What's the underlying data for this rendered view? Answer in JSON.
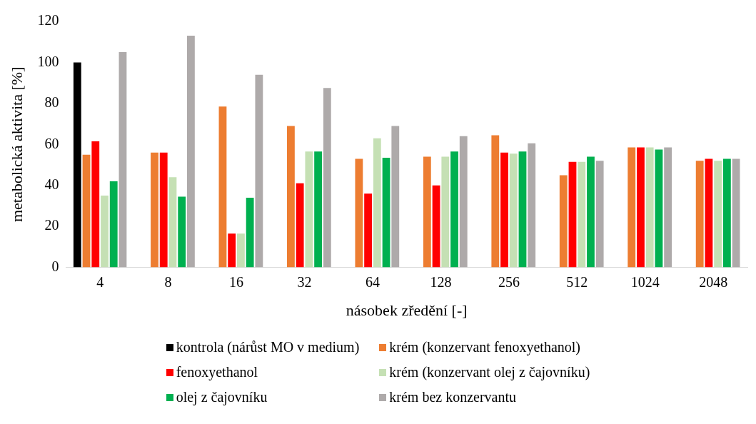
{
  "chart_data": {
    "type": "bar",
    "xlabel": "násobek zředění [-]",
    "ylabel": "metabolická aktivita [%]",
    "categories": [
      "4",
      "8",
      "16",
      "32",
      "64",
      "128",
      "256",
      "512",
      "1024",
      "2048"
    ],
    "series": [
      {
        "name": "kontrola (nárůst MO v medium)",
        "color": "#000000",
        "values": [
          100,
          null,
          null,
          null,
          null,
          null,
          null,
          null,
          null,
          null
        ]
      },
      {
        "name": "krém (konzervant fenoxyethanol)",
        "color": "#ed7d31",
        "values": [
          55,
          56,
          78.5,
          69,
          53,
          54,
          64.5,
          45,
          58.5,
          52
        ]
      },
      {
        "name": "fenoxyethanol",
        "color": "#ff0000",
        "values": [
          61.5,
          56,
          16.5,
          41,
          36,
          40,
          56,
          51.5,
          58.5,
          53
        ]
      },
      {
        "name": "krém (konzervant olej z čajovníku)",
        "color": "#c5e0b4",
        "values": [
          35,
          44,
          16.5,
          56.5,
          63,
          54,
          55.5,
          51.5,
          58.5,
          52
        ]
      },
      {
        "name": "olej z čajovníku",
        "color": "#00b050",
        "values": [
          42,
          34.5,
          34,
          56.5,
          53.5,
          56.5,
          56.5,
          54,
          57.5,
          53
        ]
      },
      {
        "name": "krém bez konzervantu",
        "color": "#aeaaaa",
        "values": [
          105,
          113,
          94,
          87.5,
          69,
          64,
          60.5,
          52,
          58.5,
          53
        ]
      }
    ],
    "ylim": [
      0,
      120
    ],
    "yticks": [
      0,
      20,
      40,
      60,
      80,
      100,
      120
    ],
    "grid": false,
    "legend": "bottom"
  }
}
